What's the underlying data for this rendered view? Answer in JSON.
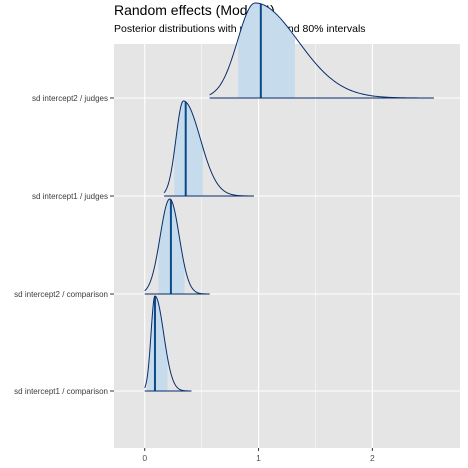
{
  "chart_data": {
    "type": "ridgeline",
    "title": "Random effects (Model 4)",
    "subtitle": "Posterior distributions with medians and 80% intervals",
    "xlabel": "",
    "ylabel": "",
    "xlim": [
      -0.27,
      2.77
    ],
    "x_ticks": [
      0,
      1,
      2
    ],
    "x_tick_labels": [
      "0",
      "1",
      "2"
    ],
    "grid": true,
    "legend": "none",
    "colors": {
      "panel_bg": "#e5e5e5",
      "grid": "#ffffff",
      "outline": "#0b2d6b",
      "interval_fill": "#c6dcec",
      "median_line": "#0b4a8a"
    },
    "series": [
      {
        "name": "sd intercept1 / comparison",
        "min": 0.0,
        "max": 0.41,
        "peak_x": 0.09,
        "median": 0.09,
        "interval_80": [
          0.02,
          0.2
        ]
      },
      {
        "name": "sd intercept2 / comparison",
        "min": 0.0,
        "max": 0.57,
        "peak_x": 0.22,
        "median": 0.23,
        "interval_80": [
          0.12,
          0.35
        ]
      },
      {
        "name": "sd intercept1 / judges",
        "min": 0.17,
        "max": 0.96,
        "peak_x": 0.34,
        "median": 0.36,
        "interval_80": [
          0.26,
          0.51
        ]
      },
      {
        "name": "sd intercept2 / judges",
        "min": 0.57,
        "max": 2.54,
        "peak_x": 0.97,
        "median": 1.02,
        "interval_80": [
          0.82,
          1.32
        ]
      }
    ]
  }
}
